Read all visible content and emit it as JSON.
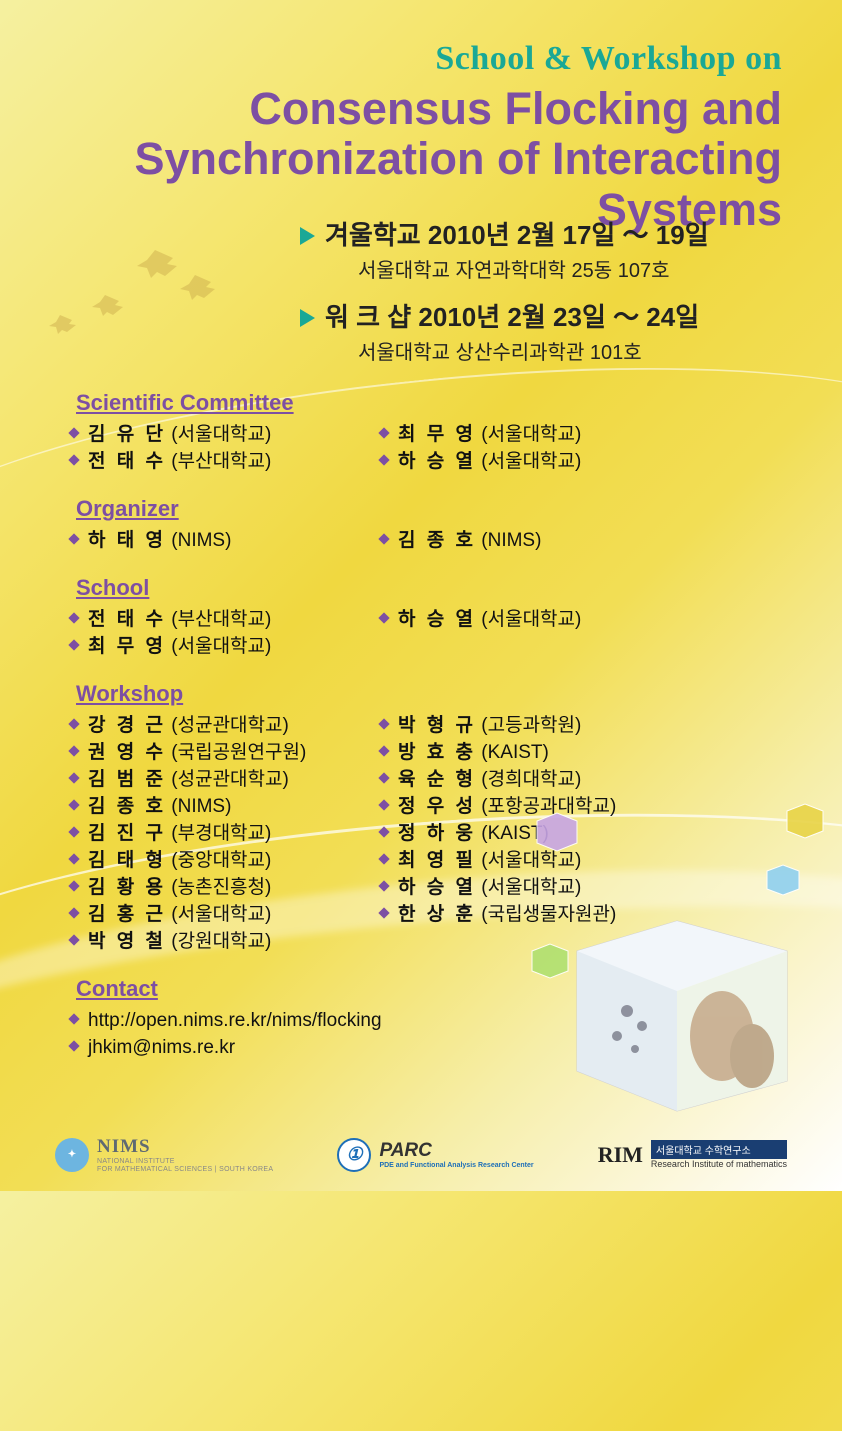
{
  "colors": {
    "accent_teal": "#1aa896",
    "accent_purple": "#7d4fa3",
    "text": "#111111",
    "bg_gradient": [
      "#f5f0a0",
      "#f5e670",
      "#f0d840",
      "#f2de55",
      "#f6eea8",
      "#fcf8e0",
      "#ffffff"
    ]
  },
  "header": {
    "line1": "School & Workshop on",
    "line2": "Consensus Flocking and Synchronization of Interacting Systems"
  },
  "dates": [
    {
      "title": "겨울학교 2010년 2월 17일 ～ 19일",
      "venue": "서울대학교 자연과학대학 25동 107호"
    },
    {
      "title": "워 크 샵 2010년 2월 23일 ～ 24일",
      "venue": "서울대학교 상산수리과학관 101호"
    }
  ],
  "sections": {
    "committee": {
      "title": "Scientific Committee",
      "left": [
        {
          "name": "김 유 단",
          "aff": "(서울대학교)"
        },
        {
          "name": "전 태 수",
          "aff": "(부산대학교)"
        }
      ],
      "right": [
        {
          "name": "최 무 영",
          "aff": "(서울대학교)"
        },
        {
          "name": "하 승 열",
          "aff": "(서울대학교)"
        }
      ]
    },
    "organizer": {
      "title": "Organizer",
      "left": [
        {
          "name": "하 태 영",
          "aff": "(NIMS)"
        }
      ],
      "right": [
        {
          "name": "김 종 호",
          "aff": "(NIMS)"
        }
      ]
    },
    "school": {
      "title": "School",
      "left": [
        {
          "name": "전 태 수",
          "aff": "(부산대학교)"
        },
        {
          "name": "최 무 영",
          "aff": "(서울대학교)"
        }
      ],
      "right": [
        {
          "name": "하 승 열",
          "aff": "(서울대학교)"
        }
      ]
    },
    "workshop": {
      "title": "Workshop",
      "left": [
        {
          "name": "강 경 근",
          "aff": "(성균관대학교)"
        },
        {
          "name": "권 영 수",
          "aff": "(국립공원연구원)"
        },
        {
          "name": "김 범 준",
          "aff": "(성균관대학교)"
        },
        {
          "name": "김 종 호",
          "aff": "(NIMS)"
        },
        {
          "name": "김 진 구",
          "aff": "(부경대학교)"
        },
        {
          "name": "김 태 형",
          "aff": "(중앙대학교)"
        },
        {
          "name": "김 황 용",
          "aff": "(농촌진흥청)"
        },
        {
          "name": "김 홍 근",
          "aff": "(서울대학교)"
        },
        {
          "name": "박 영 철",
          "aff": "(강원대학교)"
        }
      ],
      "right": [
        {
          "name": "박 형 규",
          "aff": "(고등과학원)"
        },
        {
          "name": "방 효 충",
          "aff": "(KAIST)"
        },
        {
          "name": "육 순 형",
          "aff": "(경희대학교)"
        },
        {
          "name": "정 우 성",
          "aff": "(포항공과대학교)"
        },
        {
          "name": "정 하 웅",
          "aff": "(KAIST)"
        },
        {
          "name": "최 영 필",
          "aff": "(서울대학교)"
        },
        {
          "name": "하 승 열",
          "aff": "(서울대학교)"
        },
        {
          "name": "한 상 훈",
          "aff": "(국립생물자원관)"
        }
      ]
    },
    "contact": {
      "title": "Contact",
      "items": [
        "http://open.nims.re.kr/nims/flocking",
        "jhkim@nims.re.kr"
      ]
    }
  },
  "logos": {
    "nims": {
      "name": "NIMS",
      "sub1": "NATIONAL INSTITUTE",
      "sub2": "FOR MATHEMATICAL SCIENCES | SOUTH KOREA"
    },
    "parc": {
      "name": "PARC",
      "sub": "PDE and Functional Analysis Research Center"
    },
    "rim": {
      "name": "RIM",
      "sub1": "서울대학교 수학연구소",
      "sub2": "Research Institute of mathematics"
    }
  }
}
